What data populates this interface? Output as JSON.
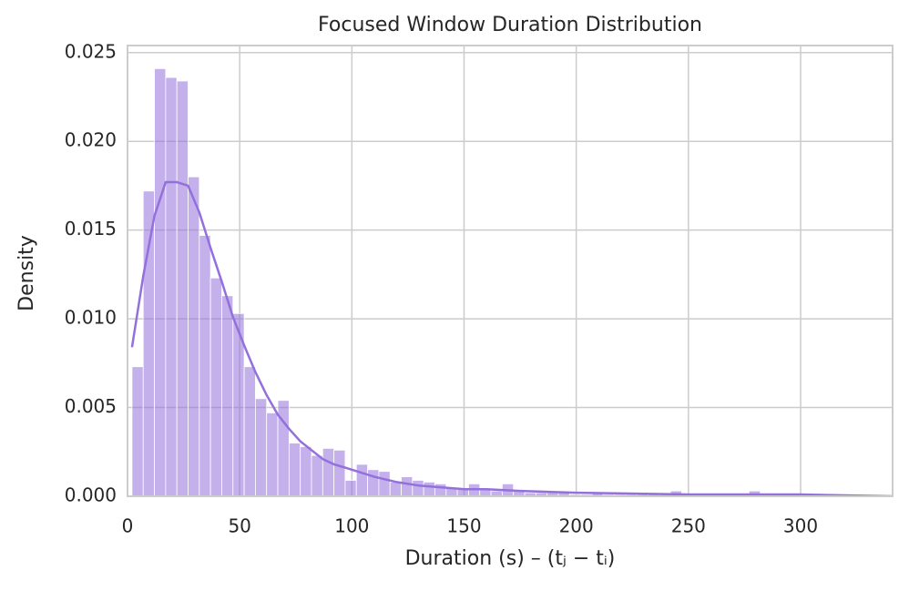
{
  "chart_data": {
    "type": "histogram",
    "title": "Focused Window Duration Distribution",
    "xlabel": "Duration (s)  –  (tⱼ − tᵢ)",
    "ylabel": "Density",
    "color": "#9370db",
    "bins": [
      2,
      7,
      12,
      17,
      22,
      27,
      32,
      37,
      42,
      47,
      52,
      57,
      62,
      67,
      72,
      77,
      82,
      87,
      92,
      97,
      102,
      107,
      112,
      117,
      122,
      127,
      132,
      137,
      142,
      147,
      152,
      157,
      162,
      167,
      172,
      177,
      182,
      187,
      192,
      197,
      202,
      207,
      212,
      217,
      222,
      227,
      232,
      237,
      242,
      247,
      252,
      257,
      262,
      267,
      272,
      277,
      282,
      287,
      292,
      297,
      302,
      307,
      312,
      317,
      322,
      327,
      332,
      337
    ],
    "counts": [
      0.0073,
      0.0172,
      0.0241,
      0.0236,
      0.0234,
      0.018,
      0.0147,
      0.0123,
      0.0113,
      0.0103,
      0.0073,
      0.0055,
      0.0047,
      0.0054,
      0.003,
      0.0028,
      0.0023,
      0.0027,
      0.0026,
      0.0009,
      0.0018,
      0.0015,
      0.0014,
      0.0008,
      0.0011,
      0.0009,
      0.0008,
      0.0007,
      0.0005,
      0.0004,
      0.0007,
      0.0004,
      0.0003,
      0.0007,
      0.0003,
      0.0002,
      0.0002,
      0.0003,
      0.0002,
      0.0001,
      0.0001,
      0.0002,
      0.0001,
      0.0001,
      0.0001,
      0.0001,
      0.0001,
      0.0001,
      0.0003,
      0.0001,
      0,
      0.0001,
      0,
      0.0001,
      0.0001,
      0.0003,
      0,
      0.0001,
      0,
      0,
      0.0001,
      0,
      0,
      0.0001,
      0,
      0,
      0.0001
    ],
    "kde": {
      "x": [
        2,
        7,
        12,
        17,
        22,
        27,
        32,
        37,
        42,
        47,
        52,
        57,
        62,
        67,
        72,
        77,
        82,
        87,
        92,
        100,
        110,
        120,
        130,
        140,
        150,
        160,
        175,
        200,
        250,
        300,
        341
      ],
      "values": [
        0.0084,
        0.0124,
        0.0158,
        0.0177,
        0.0177,
        0.0175,
        0.016,
        0.014,
        0.0121,
        0.0101,
        0.0085,
        0.007,
        0.0057,
        0.0046,
        0.0038,
        0.0031,
        0.0026,
        0.0021,
        0.0018,
        0.0015,
        0.0011,
        0.0008,
        0.0006,
        0.0005,
        0.0004,
        0.0004,
        0.0003,
        0.0002,
        0.0001,
        0.0001,
        0
      ]
    },
    "xlim": [
      0,
      341
    ],
    "ylim": [
      0,
      0.0254
    ],
    "xticks": [
      0,
      50,
      100,
      150,
      200,
      250,
      300
    ],
    "yticks": [
      {
        "value": 0,
        "label": "0.000"
      },
      0.005,
      {
        "value": 0.01,
        "label": "0.010"
      },
      0.015,
      {
        "value": 0.02,
        "label": "0.020"
      },
      0.025
    ],
    "grid": true
  }
}
